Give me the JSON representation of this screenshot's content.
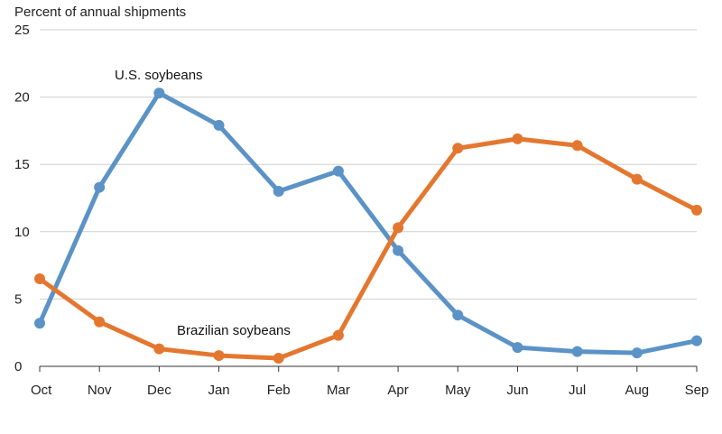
{
  "chart_data": {
    "type": "line",
    "ylabel": "Percent of annual shipments",
    "categories": [
      "Oct",
      "Nov",
      "Dec",
      "Jan",
      "Feb",
      "Mar",
      "Apr",
      "May",
      "Jun",
      "Jul",
      "Aug",
      "Sep"
    ],
    "ylim": [
      0,
      25
    ],
    "yticks": [
      0,
      5,
      10,
      15,
      20,
      25
    ],
    "grid": true,
    "series": [
      {
        "name": "U.S. soybeans",
        "color": "#5b93c6",
        "values": [
          3.2,
          13.3,
          20.3,
          17.9,
          13.0,
          14.5,
          8.6,
          3.8,
          1.4,
          1.1,
          1.0,
          1.9
        ]
      },
      {
        "name": "Brazilian soybeans",
        "color": "#e4772f",
        "values": [
          6.5,
          3.3,
          1.3,
          0.8,
          0.6,
          2.3,
          10.3,
          16.2,
          16.9,
          16.4,
          13.9,
          11.6
        ]
      }
    ]
  }
}
